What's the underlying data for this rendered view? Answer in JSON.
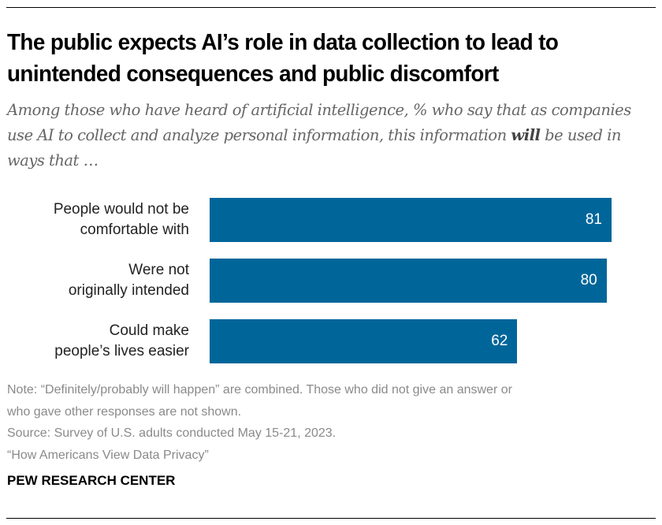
{
  "chart_data": {
    "type": "bar",
    "orientation": "horizontal",
    "title": "The public expects AI’s role in data collection to lead to unintended consequences and public discomfort",
    "subtitle_parts": [
      "Among those who have heard of artificial intelligence, % who say that as companies use AI to collect and analyze personal information, this information ",
      "will",
      " be used in ways that …"
    ],
    "categories": [
      "People would not be comfortable with",
      "Were not originally intended",
      "Could make people’s lives easier"
    ],
    "category_lines": [
      [
        "People would not be",
        "comfortable with"
      ],
      [
        "Were not",
        "originally intended"
      ],
      [
        "Could make",
        "people’s lives easier"
      ]
    ],
    "values": [
      81,
      80,
      62
    ],
    "value_labels": [
      "81",
      "80",
      "62"
    ],
    "xlim": [
      0,
      100
    ],
    "grid": false,
    "bar_color": "#00669a"
  },
  "notes": [
    "Note: “Definitely/probably will happen” are combined. Those who did not give an answer or",
    "who gave other responses are not shown.",
    "Source: Survey of U.S. adults conducted May 15-21, 2023.",
    "“How Americans View Data Privacy”"
  ],
  "brand": "PEW RESEARCH CENTER"
}
